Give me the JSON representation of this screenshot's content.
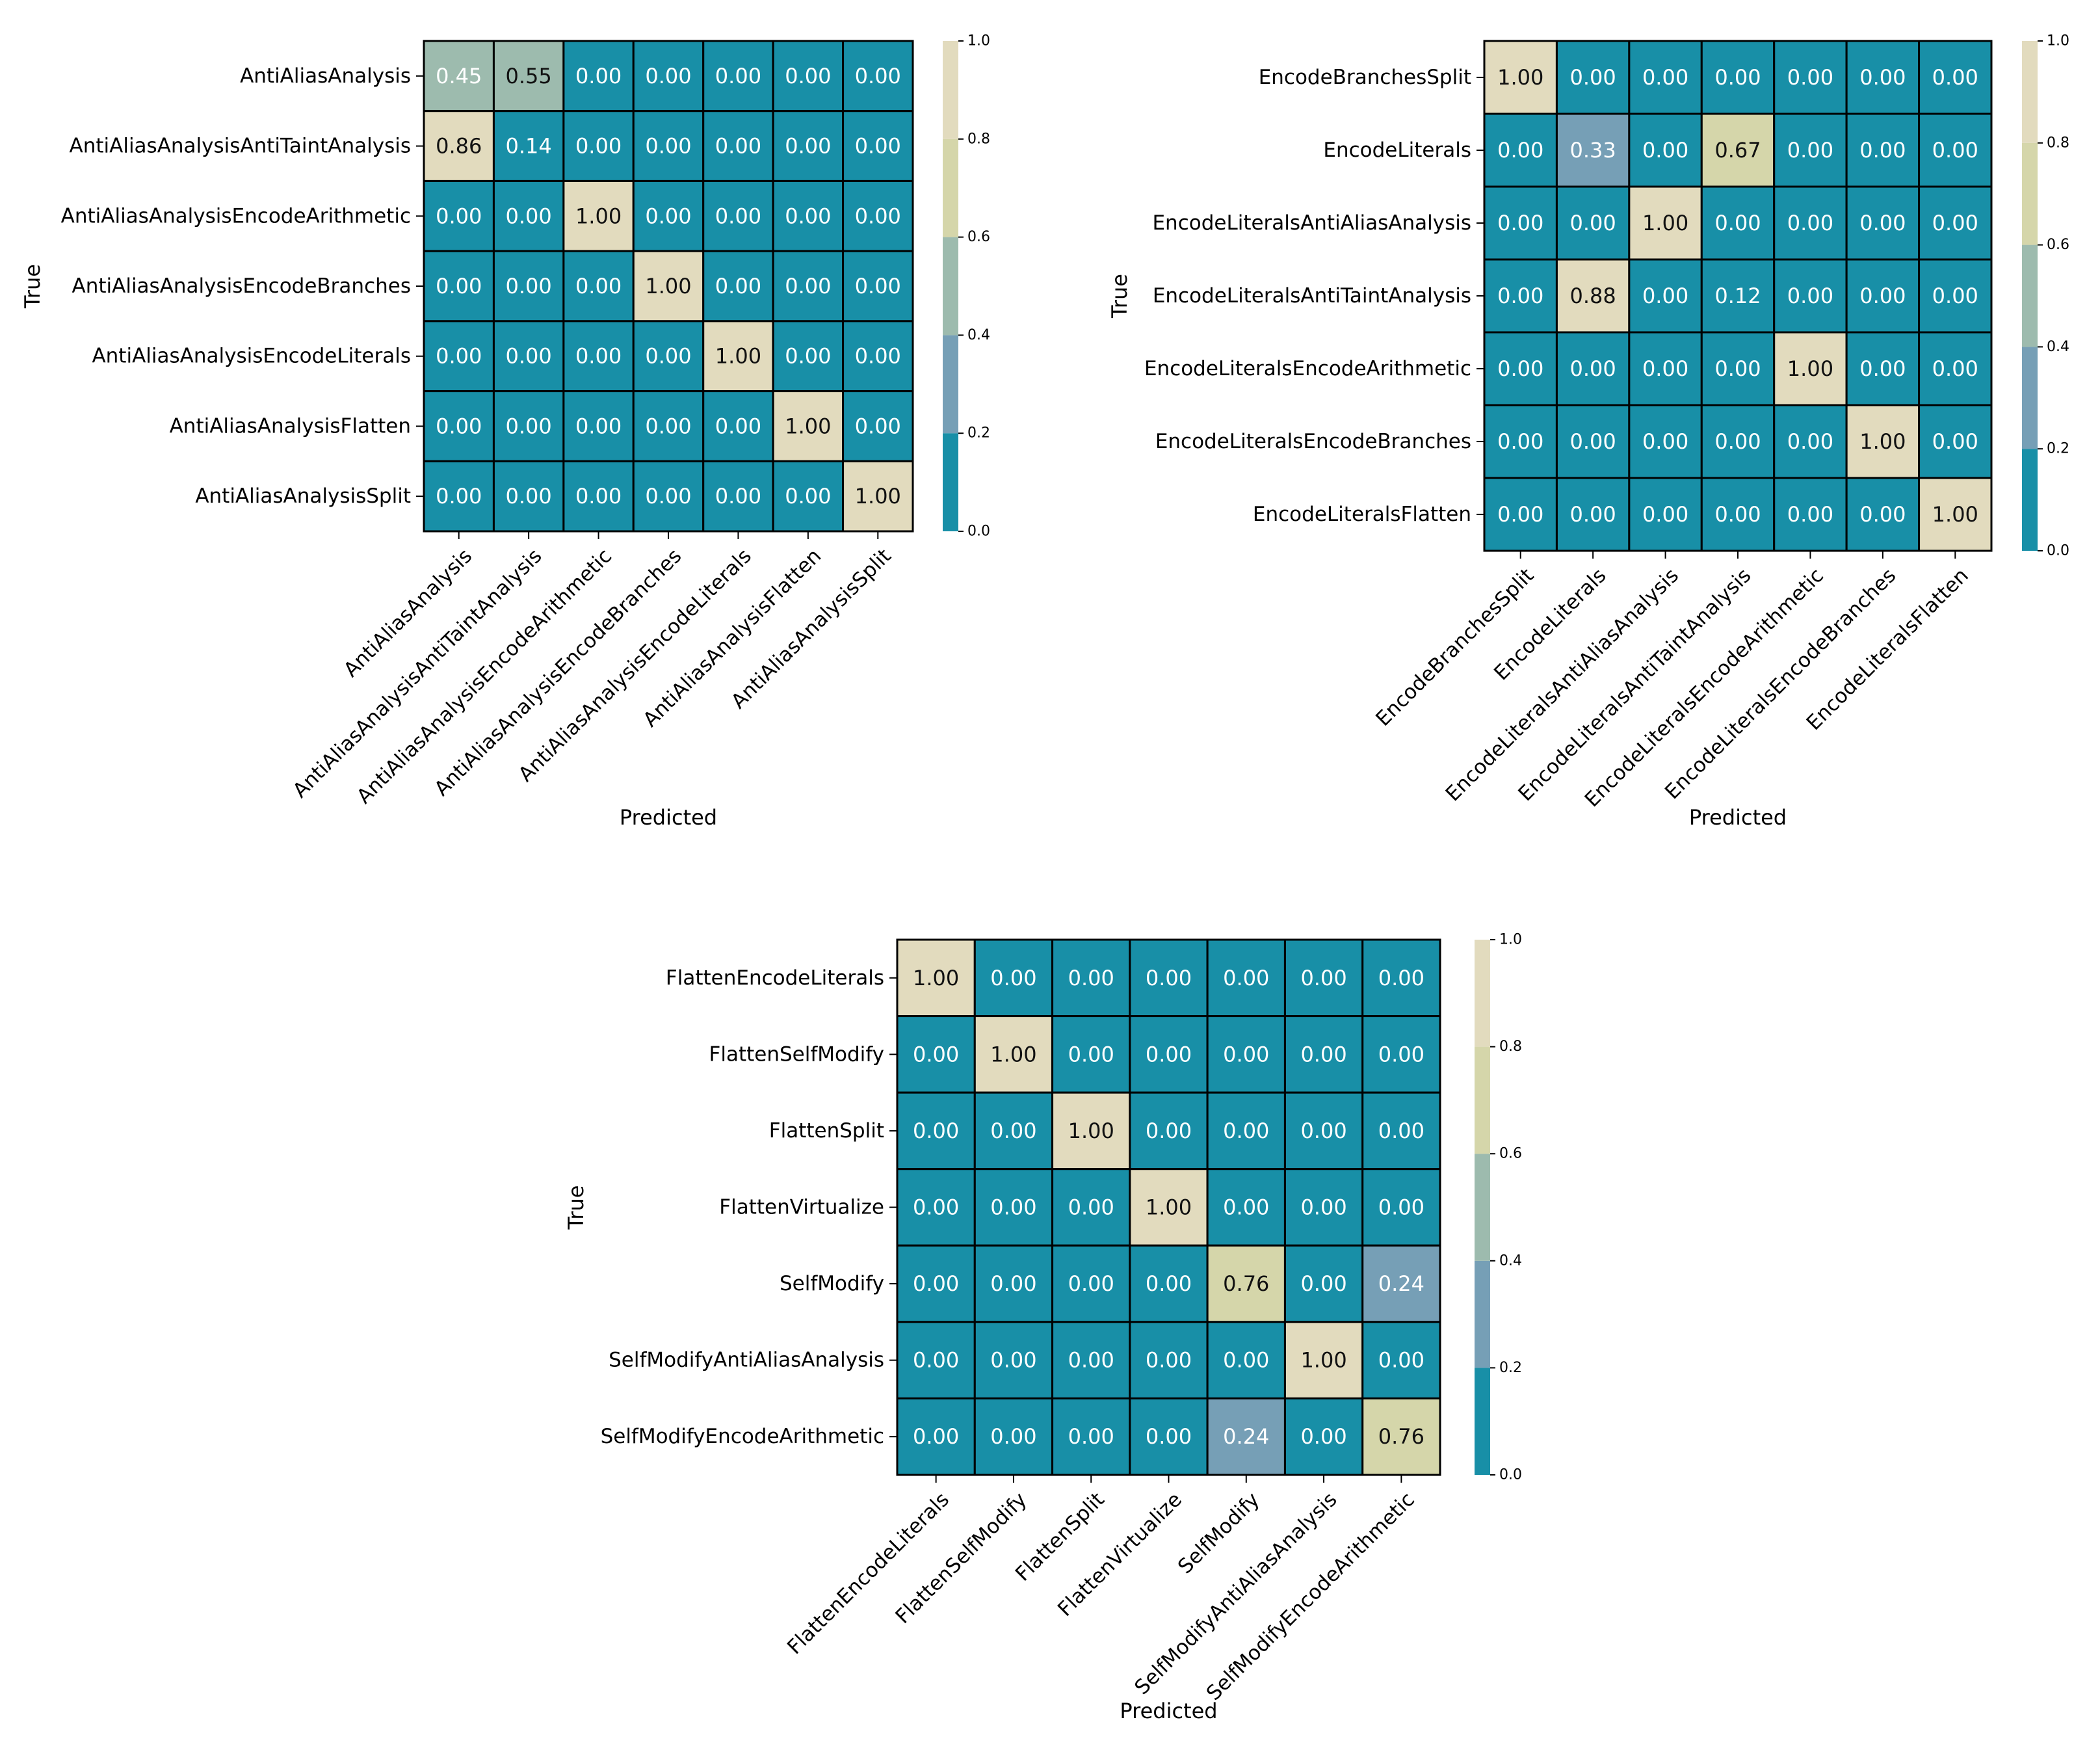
{
  "colorbar": {
    "bins": [
      {
        "from": 0.0,
        "to": 0.2,
        "color": "#188FA7"
      },
      {
        "from": 0.2,
        "to": 0.4,
        "color": "#769FB6"
      },
      {
        "from": 0.4,
        "to": 0.6,
        "color": "#9DBBAE"
      },
      {
        "from": 0.6,
        "to": 0.8,
        "color": "#D5D6AA"
      },
      {
        "from": 0.8,
        "to": 1.0,
        "color": "#E2DBBE"
      }
    ],
    "ticks": [
      "0.0",
      "0.2",
      "0.4",
      "0.6",
      "0.8",
      "1.0"
    ]
  },
  "chart_data": [
    {
      "type": "heatmap",
      "xlabel": "Predicted",
      "ylabel": "True",
      "vlim": [
        0,
        1
      ],
      "rows": [
        "AntiAliasAnalysis",
        "AntiAliasAnalysisAntiTaintAnalysis",
        "AntiAliasAnalysisEncodeArithmetic",
        "AntiAliasAnalysisEncodeBranches",
        "AntiAliasAnalysisEncodeLiterals",
        "AntiAliasAnalysisFlatten",
        "AntiAliasAnalysisSplit"
      ],
      "cols": [
        "AntiAliasAnalysis",
        "AntiAliasAnalysisAntiTaintAnalysis",
        "AntiAliasAnalysisEncodeArithmetic",
        "AntiAliasAnalysisEncodeBranches",
        "AntiAliasAnalysisEncodeLiterals",
        "AntiAliasAnalysisFlatten",
        "AntiAliasAnalysisSplit"
      ],
      "values": [
        [
          0.45,
          0.55,
          0.0,
          0.0,
          0.0,
          0.0,
          0.0
        ],
        [
          0.86,
          0.14,
          0.0,
          0.0,
          0.0,
          0.0,
          0.0
        ],
        [
          0.0,
          0.0,
          1.0,
          0.0,
          0.0,
          0.0,
          0.0
        ],
        [
          0.0,
          0.0,
          0.0,
          1.0,
          0.0,
          0.0,
          0.0
        ],
        [
          0.0,
          0.0,
          0.0,
          0.0,
          1.0,
          0.0,
          0.0
        ],
        [
          0.0,
          0.0,
          0.0,
          0.0,
          0.0,
          1.0,
          0.0
        ],
        [
          0.0,
          0.0,
          0.0,
          0.0,
          0.0,
          0.0,
          1.0
        ]
      ]
    },
    {
      "type": "heatmap",
      "xlabel": "Predicted",
      "ylabel": "True",
      "vlim": [
        0,
        1
      ],
      "rows": [
        "EncodeBranchesSplit",
        "EncodeLiterals",
        "EncodeLiteralsAntiAliasAnalysis",
        "EncodeLiteralsAntiTaintAnalysis",
        "EncodeLiteralsEncodeArithmetic",
        "EncodeLiteralsEncodeBranches",
        "EncodeLiteralsFlatten"
      ],
      "cols": [
        "EncodeBranchesSplit",
        "EncodeLiterals",
        "EncodeLiteralsAntiAliasAnalysis",
        "EncodeLiteralsAntiTaintAnalysis",
        "EncodeLiteralsEncodeArithmetic",
        "EncodeLiteralsEncodeBranches",
        "EncodeLiteralsFlatten"
      ],
      "values": [
        [
          1.0,
          0.0,
          0.0,
          0.0,
          0.0,
          0.0,
          0.0
        ],
        [
          0.0,
          0.33,
          0.0,
          0.67,
          0.0,
          0.0,
          0.0
        ],
        [
          0.0,
          0.0,
          1.0,
          0.0,
          0.0,
          0.0,
          0.0
        ],
        [
          0.0,
          0.88,
          0.0,
          0.12,
          0.0,
          0.0,
          0.0
        ],
        [
          0.0,
          0.0,
          0.0,
          0.0,
          1.0,
          0.0,
          0.0
        ],
        [
          0.0,
          0.0,
          0.0,
          0.0,
          0.0,
          1.0,
          0.0
        ],
        [
          0.0,
          0.0,
          0.0,
          0.0,
          0.0,
          0.0,
          1.0
        ]
      ]
    },
    {
      "type": "heatmap",
      "xlabel": "Predicted",
      "ylabel": "True",
      "vlim": [
        0,
        1
      ],
      "rows": [
        "FlattenEncodeLiterals",
        "FlattenSelfModify",
        "FlattenSplit",
        "FlattenVirtualize",
        "SelfModify",
        "SelfModifyAntiAliasAnalysis",
        "SelfModifyEncodeArithmetic"
      ],
      "cols": [
        "FlattenEncodeLiterals",
        "FlattenSelfModify",
        "FlattenSplit",
        "FlattenVirtualize",
        "SelfModify",
        "SelfModifyAntiAliasAnalysis",
        "SelfModifyEncodeArithmetic"
      ],
      "values": [
        [
          1.0,
          0.0,
          0.0,
          0.0,
          0.0,
          0.0,
          0.0
        ],
        [
          0.0,
          1.0,
          0.0,
          0.0,
          0.0,
          0.0,
          0.0
        ],
        [
          0.0,
          0.0,
          1.0,
          0.0,
          0.0,
          0.0,
          0.0
        ],
        [
          0.0,
          0.0,
          0.0,
          1.0,
          0.0,
          0.0,
          0.0
        ],
        [
          0.0,
          0.0,
          0.0,
          0.0,
          0.76,
          0.0,
          0.24
        ],
        [
          0.0,
          0.0,
          0.0,
          0.0,
          0.0,
          1.0,
          0.0
        ],
        [
          0.0,
          0.0,
          0.0,
          0.0,
          0.24,
          0.0,
          0.76
        ]
      ]
    }
  ]
}
